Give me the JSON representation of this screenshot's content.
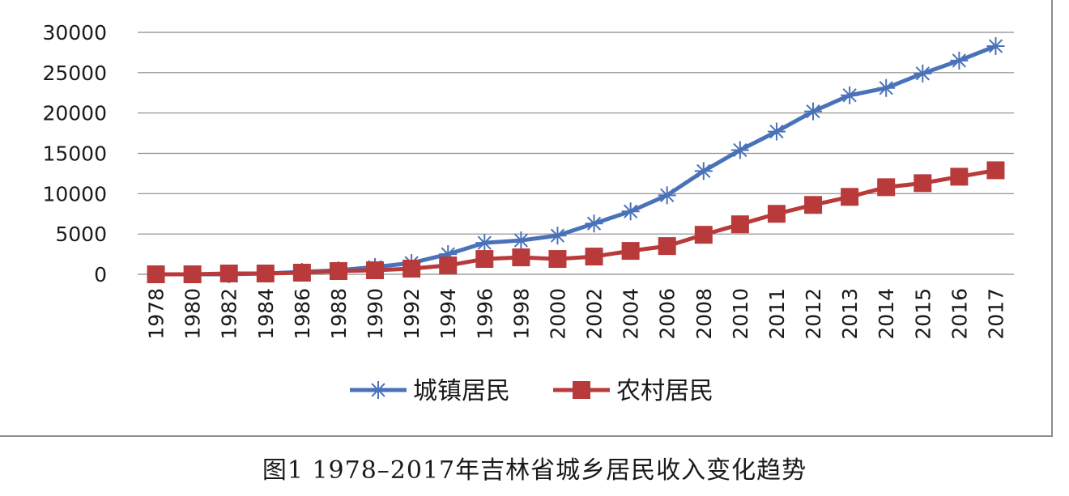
{
  "chart_data": {
    "type": "line",
    "categories": [
      "1978",
      "1980",
      "1982",
      "1984",
      "1986",
      "1988",
      "1990",
      "1992",
      "1994",
      "1996",
      "1998",
      "2000",
      "2002",
      "2004",
      "2006",
      "2008",
      "2010",
      "2011",
      "2012",
      "2013",
      "2014",
      "2015",
      "2016",
      "2017"
    ],
    "ylim": [
      0,
      30000
    ],
    "yticks": [
      "0",
      "5000",
      "10000",
      "15000",
      "20000",
      "25000",
      "30000"
    ],
    "grid": true,
    "legend_position": "bottom",
    "series": [
      {
        "name": "城镇居民",
        "color": "#4a72b8",
        "marker": "asterisk",
        "values": [
          0,
          0,
          0,
          100,
          300,
          500,
          900,
          1400,
          2500,
          3900,
          4200,
          4800,
          6300,
          7800,
          9800,
          12800,
          15400,
          17700,
          20200,
          22200,
          23100,
          24900,
          26500,
          28300
        ]
      },
      {
        "name": "农村居民",
        "color": "#b83a3a",
        "marker": "square",
        "values": [
          0,
          0,
          100,
          100,
          200,
          400,
          500,
          700,
          1100,
          1900,
          2100,
          1900,
          2200,
          2900,
          3500,
          4900,
          6200,
          7500,
          8600,
          9600,
          10800,
          11300,
          12100,
          12900
        ]
      }
    ]
  },
  "caption": "图1  1978–2017年吉林省城乡居民收入变化趋势"
}
